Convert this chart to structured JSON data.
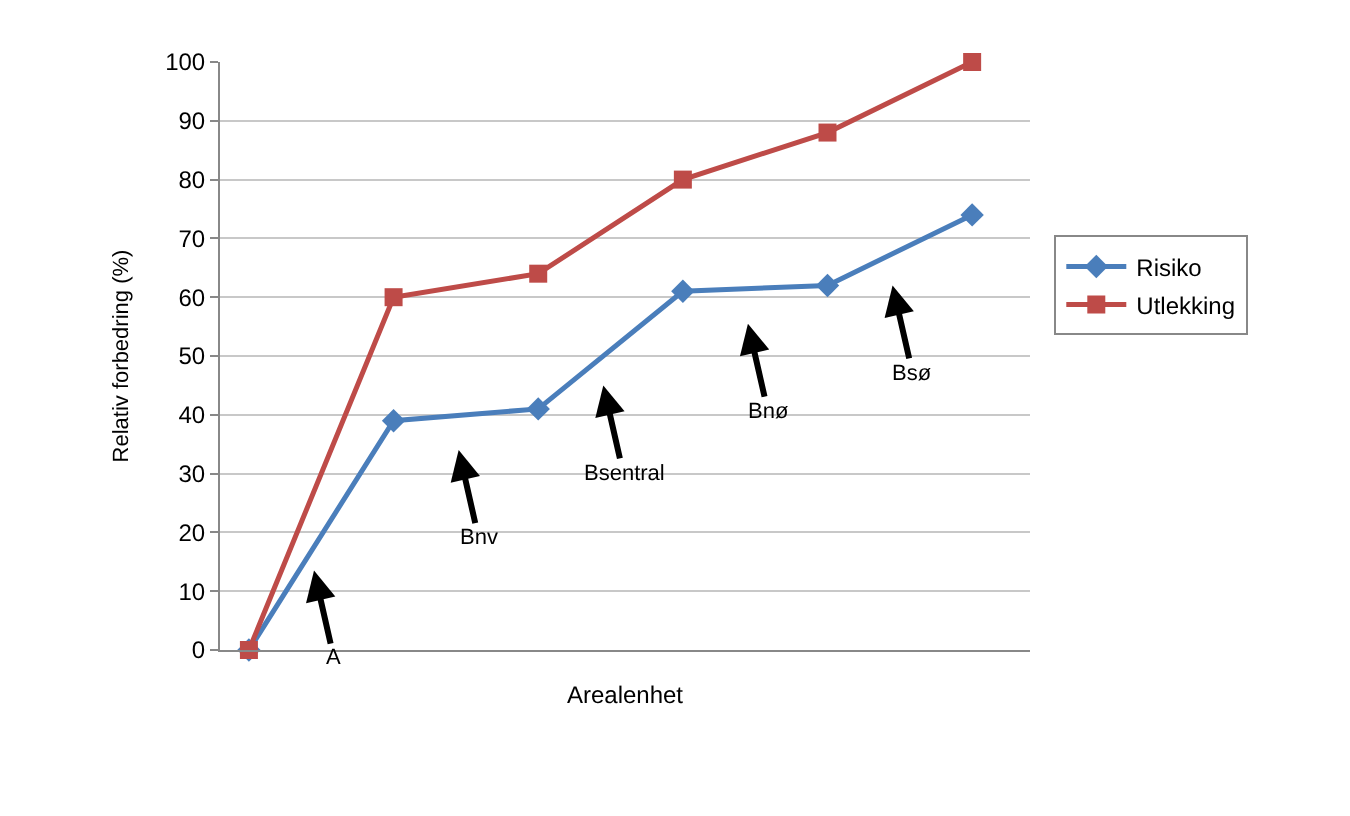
{
  "chart_data": {
    "type": "line",
    "xlabel": "Arealenhet",
    "ylabel": "Relativ forbedring (%)",
    "categories": [
      null,
      null,
      null,
      null,
      null,
      null
    ],
    "ylim": [
      0,
      100
    ],
    "yticks": [
      0,
      10,
      20,
      30,
      40,
      50,
      60,
      70,
      80,
      90,
      100
    ],
    "grid": true,
    "legend": "right",
    "line_style": "solid",
    "series": [
      {
        "name": "Risiko",
        "color": "#4a7ebb",
        "marker": "diamond",
        "values": [
          0,
          39,
          41,
          61,
          62,
          74
        ]
      },
      {
        "name": "Utlekking",
        "color": "#be4b48",
        "marker": "square",
        "values": [
          0,
          60,
          64,
          80,
          88,
          100
        ]
      }
    ],
    "annotations": [
      "A",
      "Bnv",
      "Bsentral",
      "Bnø",
      "Bsø"
    ]
  }
}
